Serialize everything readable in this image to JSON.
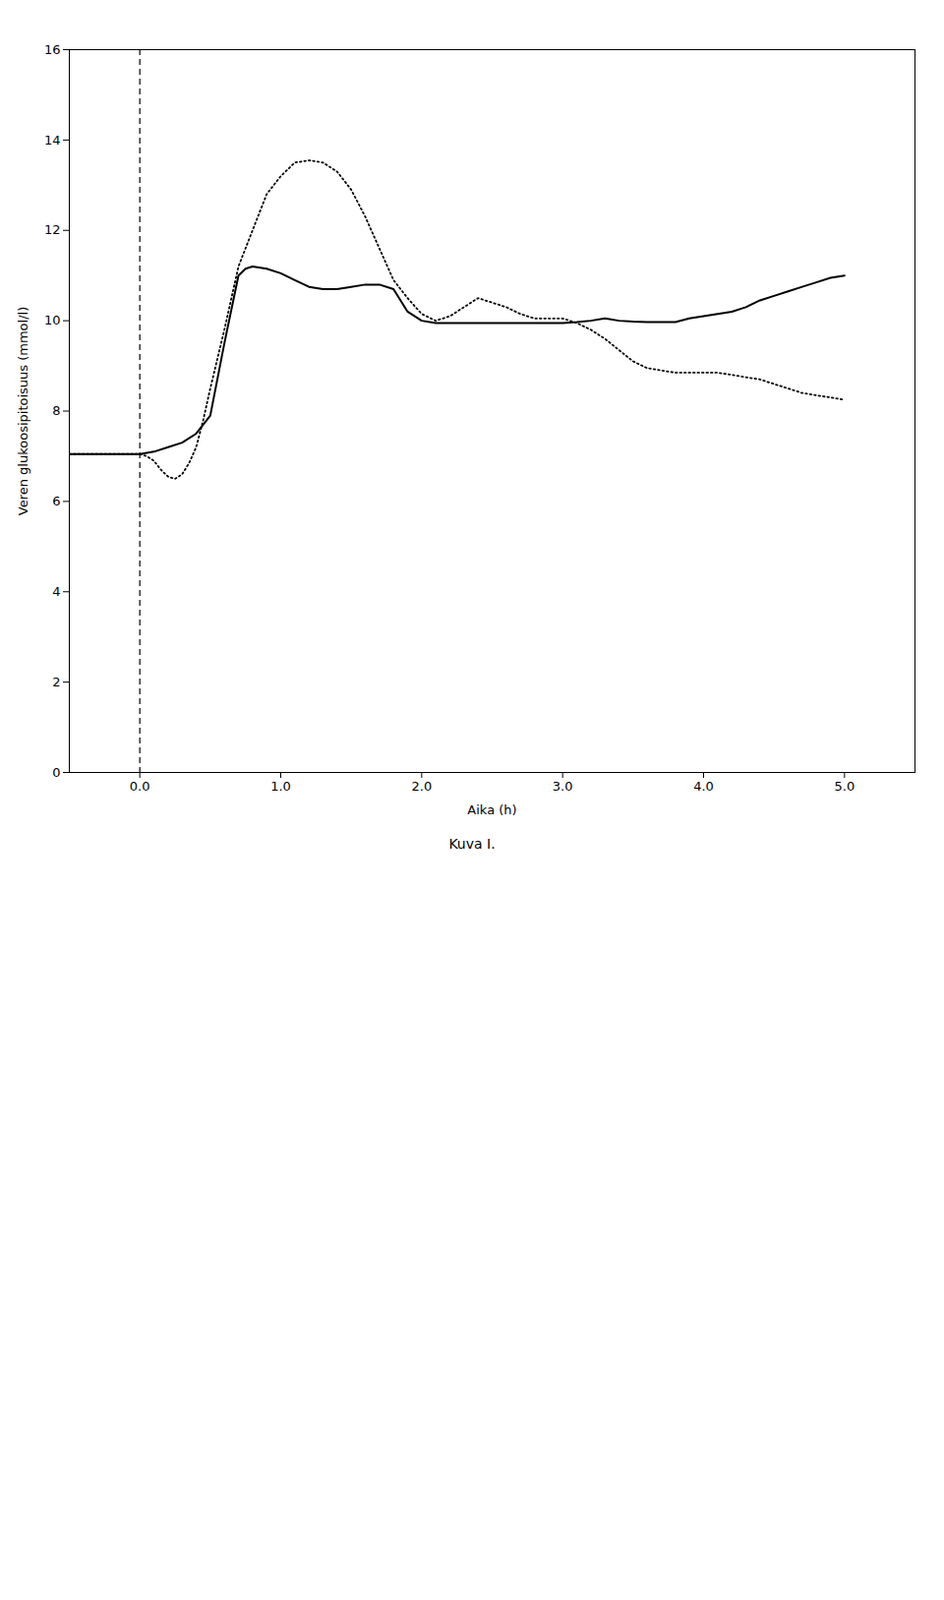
{
  "chart_data": {
    "type": "line",
    "xlabel": "Aika (h)",
    "ylabel": "Veren glukoosipitoisuus (mmol/l)",
    "caption": "Kuva I.",
    "xlim": [
      -0.5,
      5.5
    ],
    "ylim": [
      0,
      16
    ],
    "xticks": [
      0,
      1,
      2,
      3,
      4,
      5
    ],
    "yticks": [
      0,
      2,
      4,
      6,
      8,
      10,
      12,
      14,
      16
    ],
    "grid": false,
    "series": [
      {
        "color": "#000000",
        "line_style": "solid",
        "x": [
          -0.5,
          -0.4,
          -0.3,
          -0.2,
          -0.1,
          0.0,
          0.1,
          0.2,
          0.3,
          0.4,
          0.5,
          0.6,
          0.7,
          0.75,
          0.8,
          0.9,
          1.0,
          1.1,
          1.2,
          1.3,
          1.4,
          1.5,
          1.6,
          1.7,
          1.8,
          1.9,
          2.0,
          2.1,
          2.2,
          2.3,
          2.4,
          2.5,
          2.6,
          2.7,
          2.8,
          2.9,
          3.0,
          3.1,
          3.2,
          3.3,
          3.4,
          3.5,
          3.6,
          3.7,
          3.8,
          3.9,
          4.0,
          4.1,
          4.2,
          4.3,
          4.4,
          4.5,
          4.6,
          4.7,
          4.8,
          4.9,
          5.0
        ],
        "values": [
          7.05,
          7.05,
          7.05,
          7.05,
          7.05,
          7.05,
          7.1,
          7.2,
          7.3,
          7.5,
          7.9,
          9.5,
          11.0,
          11.15,
          11.2,
          11.15,
          11.05,
          10.9,
          10.75,
          10.7,
          10.7,
          10.75,
          10.8,
          10.8,
          10.7,
          10.2,
          10.0,
          9.95,
          9.95,
          9.95,
          9.95,
          9.95,
          9.95,
          9.95,
          9.95,
          9.95,
          9.95,
          9.97,
          10.0,
          10.05,
          10.0,
          9.98,
          9.97,
          9.97,
          9.97,
          10.05,
          10.1,
          10.15,
          10.2,
          10.3,
          10.45,
          10.55,
          10.65,
          10.75,
          10.85,
          10.95,
          11.0
        ]
      },
      {
        "color": "#000000",
        "line_style": "dotted",
        "x": [
          -0.5,
          -0.4,
          -0.3,
          -0.2,
          -0.1,
          0.0,
          0.05,
          0.1,
          0.15,
          0.2,
          0.25,
          0.3,
          0.35,
          0.4,
          0.45,
          0.5,
          0.6,
          0.7,
          0.8,
          0.9,
          1.0,
          1.1,
          1.2,
          1.3,
          1.4,
          1.5,
          1.6,
          1.7,
          1.8,
          1.9,
          2.0,
          2.1,
          2.2,
          2.3,
          2.4,
          2.5,
          2.6,
          2.7,
          2.8,
          2.9,
          3.0,
          3.1,
          3.2,
          3.3,
          3.4,
          3.5,
          3.6,
          3.7,
          3.8,
          3.9,
          4.0,
          4.1,
          4.2,
          4.3,
          4.4,
          4.5,
          4.6,
          4.7,
          4.8,
          4.9,
          5.0
        ],
        "values": [
          7.05,
          7.05,
          7.05,
          7.05,
          7.05,
          7.05,
          7.0,
          6.9,
          6.7,
          6.55,
          6.5,
          6.6,
          6.85,
          7.2,
          7.8,
          8.5,
          9.8,
          11.2,
          12.0,
          12.8,
          13.2,
          13.5,
          13.55,
          13.5,
          13.3,
          12.9,
          12.3,
          11.6,
          10.9,
          10.5,
          10.15,
          10.0,
          10.1,
          10.3,
          10.5,
          10.4,
          10.3,
          10.15,
          10.05,
          10.05,
          10.05,
          9.95,
          9.8,
          9.6,
          9.35,
          9.1,
          8.95,
          8.9,
          8.85,
          8.85,
          8.85,
          8.85,
          8.8,
          8.75,
          8.7,
          8.6,
          8.5,
          8.4,
          8.35,
          8.3,
          8.25
        ]
      }
    ],
    "vlines": [
      {
        "x": 0,
        "color": "#000000",
        "line_style": "dashed"
      }
    ]
  }
}
